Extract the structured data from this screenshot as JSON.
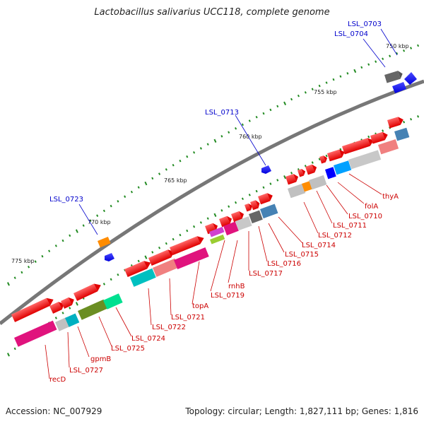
{
  "title": "Lactobacillus salivarius UCC118, complete genome",
  "footer": {
    "accession": "Accession: NC_007929",
    "topology": "Topology: circular; Length: 1,827,111 bp; Genes: 1,816"
  },
  "scale_labels": [
    "750 kbp",
    "755 kbp",
    "760 kbp",
    "765 kbp",
    "770 kbp",
    "775 kbp"
  ],
  "blue_labels": [
    "LSL_0703",
    "LSL_0704",
    "LSL_0713",
    "LSL_0723"
  ],
  "red_labels": [
    "thyA",
    "folA",
    "LSL_0710",
    "LSL_0711",
    "LSL_0712",
    "LSL_0714",
    "LSL_0715",
    "LSL_0716",
    "LSL_0717",
    "rnhB",
    "LSL_0719",
    "topA",
    "LSL_0721",
    "LSL_0722",
    "LSL_0724",
    "LSL_0725",
    "gpmB",
    "LSL_0727",
    "recD"
  ],
  "colors": {
    "backbone": "#777777",
    "forward_gene": "#ff0000",
    "reverse_gene": "#0000ff",
    "label_blue": "#0000cc",
    "label_red": "#cc0000",
    "tick": "#228b22"
  }
}
